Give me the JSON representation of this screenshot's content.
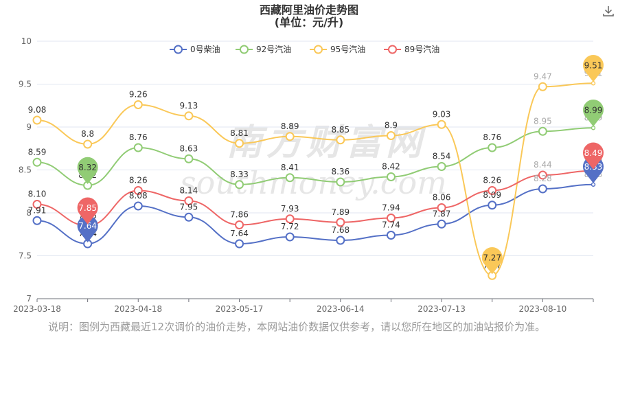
{
  "chart_data": {
    "type": "line",
    "title": "西藏阿里油价走势图",
    "subtitle": "(单位：元/升)",
    "ylim": [
      7,
      10
    ],
    "y_ticks": [
      "7",
      "7.5",
      "8",
      "8.5",
      "9",
      "9.5",
      "10"
    ],
    "x_tick_labels": [
      "2023-03-18",
      "2023-04-18",
      "2023-05-17",
      "2023-06-14",
      "2023-07-13",
      "2023-08-10"
    ],
    "legend_position": "top-center",
    "grid": "horizontal",
    "series": [
      {
        "name": "0号柴油",
        "color": "#5470c6",
        "values": [
          7.91,
          7.64,
          8.08,
          7.95,
          7.64,
          7.72,
          7.68,
          7.74,
          7.87,
          8.09,
          8.28,
          8.33
        ],
        "labels": [
          "7.91",
          "7.64",
          "8.08",
          "7.95",
          "7.64",
          "7.72",
          "7.68",
          "7.74",
          "7.87",
          "8.09",
          "8.28",
          "8.33"
        ],
        "min_pin": {
          "index": 1,
          "text": "7.64"
        },
        "max_pin": {
          "index": 11,
          "text": "8.33"
        }
      },
      {
        "name": "92号汽油",
        "color": "#91cc75",
        "values": [
          8.59,
          8.32,
          8.76,
          8.63,
          8.33,
          8.41,
          8.36,
          8.42,
          8.54,
          8.76,
          8.95,
          8.99
        ],
        "labels": [
          "8.59",
          "8.32",
          "8.76",
          "8.63",
          "8.33",
          "8.41",
          "8.36",
          "8.42",
          "8.54",
          "8.76",
          "8.95",
          "8.99"
        ],
        "min_pin": {
          "index": 1,
          "text": "8.32"
        },
        "max_pin": {
          "index": 11,
          "text": "8.99"
        }
      },
      {
        "name": "95号汽油",
        "color": "#fac858",
        "values": [
          9.08,
          8.8,
          9.26,
          9.13,
          8.81,
          8.89,
          8.85,
          8.9,
          9.03,
          7.27,
          9.47,
          9.51
        ],
        "labels": [
          "9.08",
          "8.8",
          "9.26",
          "9.13",
          "8.81",
          "8.89",
          "8.85",
          "8.9",
          "9.03",
          "7.27",
          "9.47",
          "9.51"
        ],
        "min_pin": {
          "index": 9,
          "text": "7.27"
        },
        "max_pin": {
          "index": 11,
          "text": "9.51"
        }
      },
      {
        "name": "89号汽油",
        "color": "#ee6666",
        "values": [
          8.1,
          7.85,
          8.26,
          8.14,
          7.86,
          7.93,
          7.89,
          7.94,
          8.06,
          8.26,
          8.44,
          8.49
        ],
        "labels": [
          "8.10",
          "7.85",
          "8.26",
          "8.14",
          "7.86",
          "7.93",
          "7.89",
          "7.94",
          "8.06",
          "8.26",
          "8.44",
          "8.49"
        ],
        "min_pin": {
          "index": 1,
          "text": "7.85"
        },
        "max_pin": {
          "index": 11,
          "text": "8.49"
        }
      }
    ]
  },
  "watermark": {
    "cn": "南方财富网",
    "en": "southmoney.com"
  },
  "note": "说明：图例为西藏最近12次调价的油价走势，本网站油价数据仅供参考，请以您所在地区的加油站报价为准。",
  "icons": {
    "download": "download-icon"
  }
}
